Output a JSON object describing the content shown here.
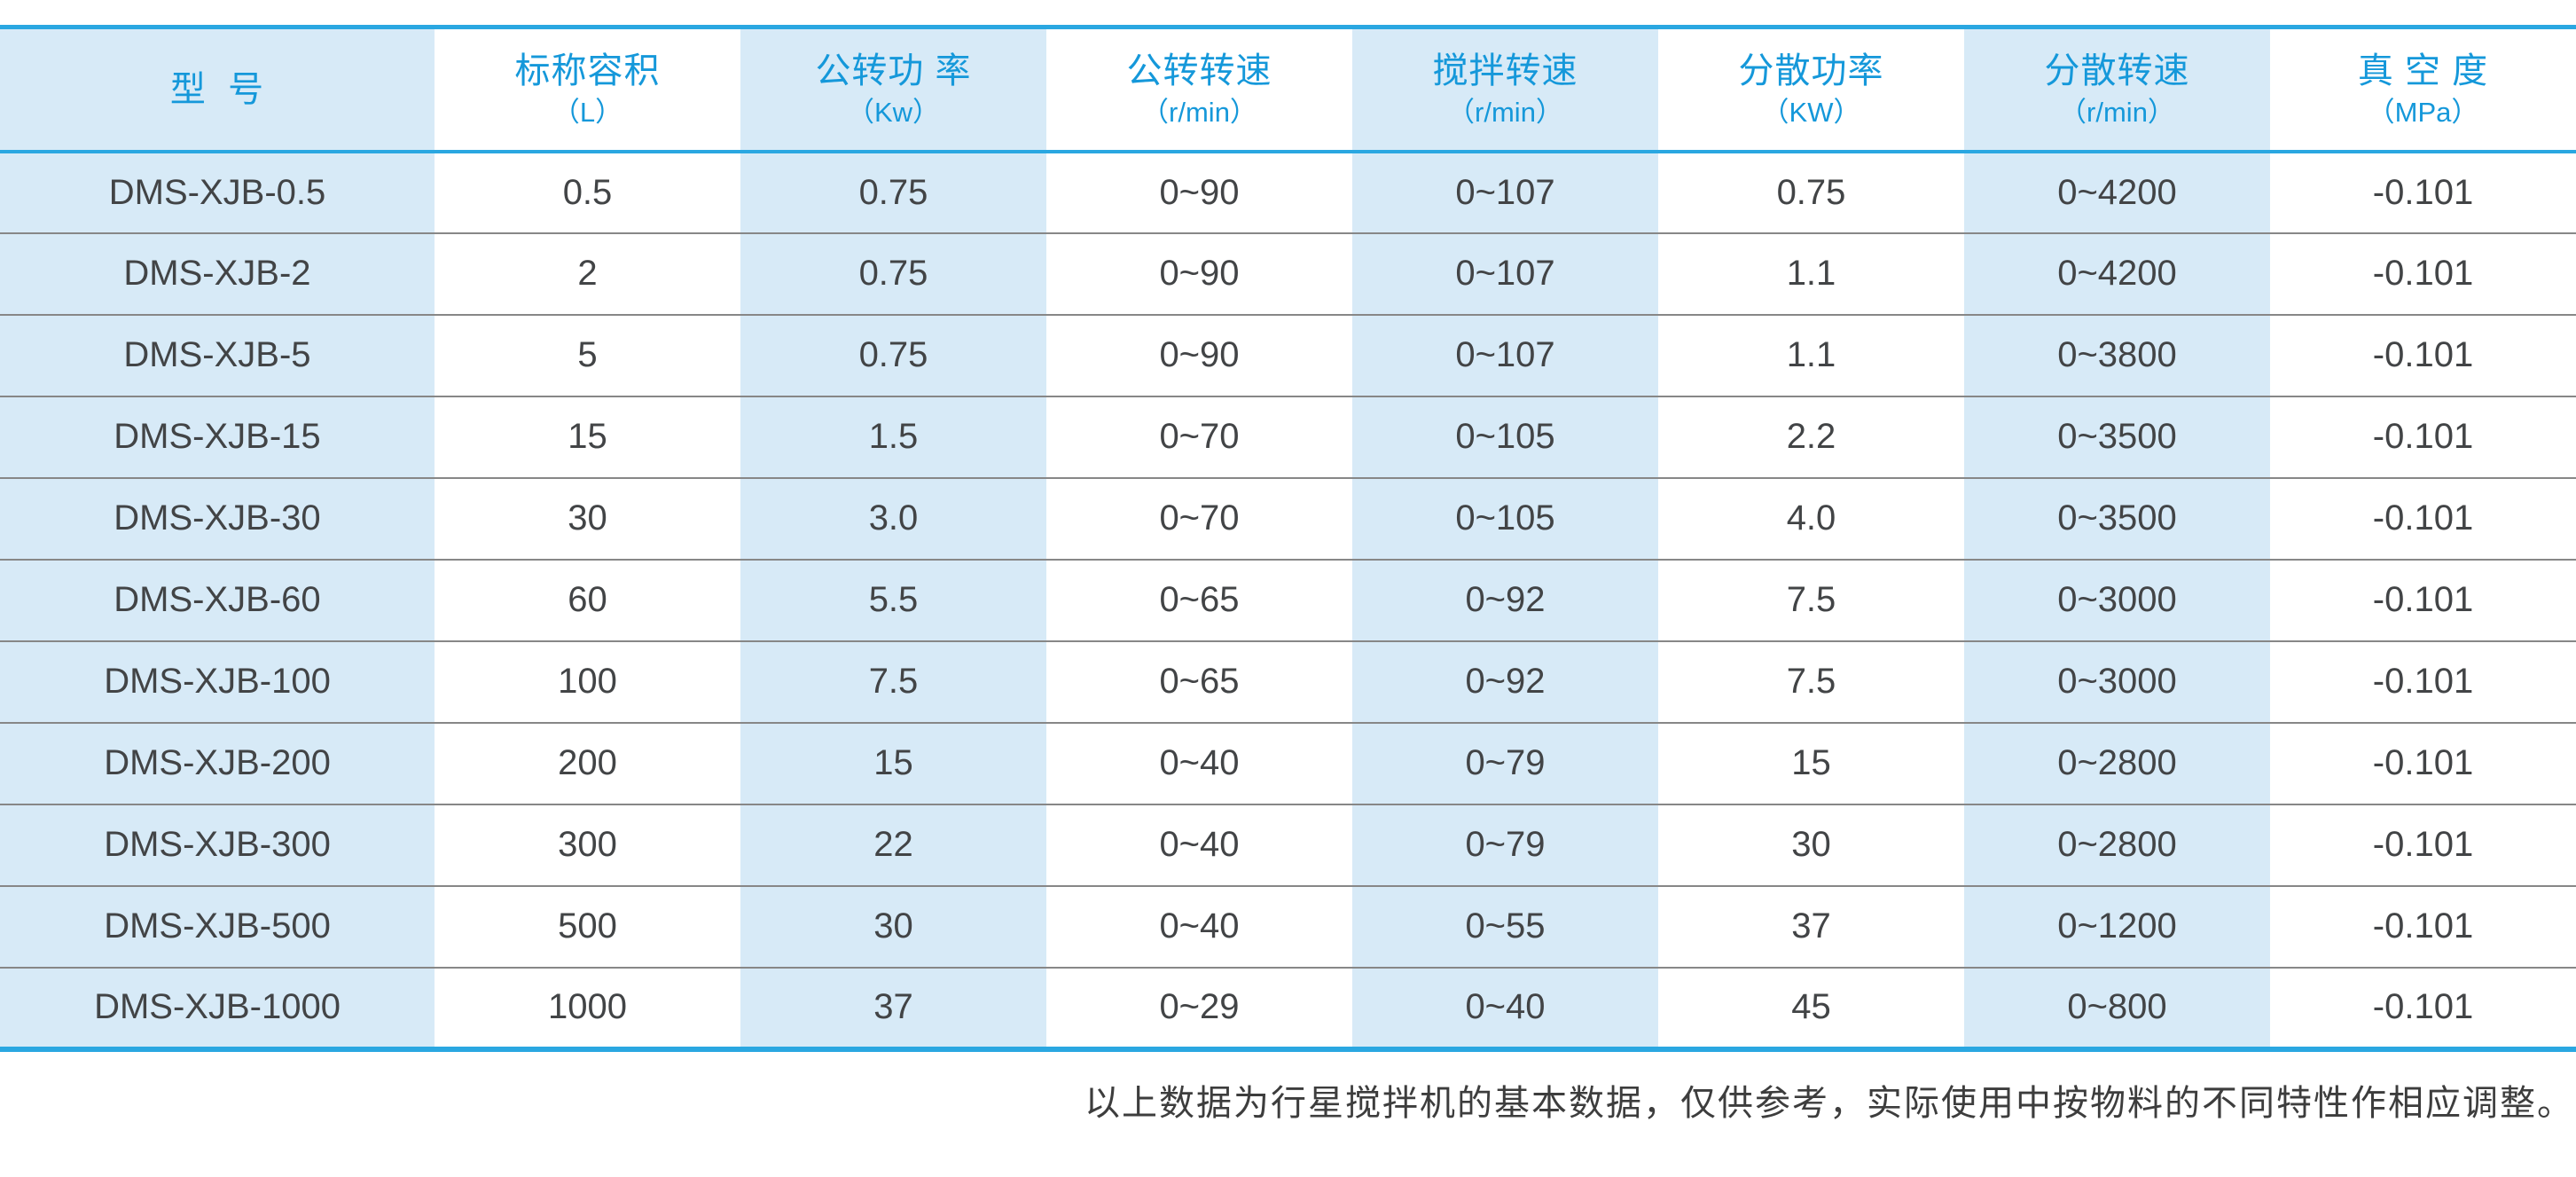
{
  "table": {
    "columns": [
      {
        "key": "model",
        "title": "型  号",
        "unit": ""
      },
      {
        "key": "nominal-volume",
        "title": "标称容积",
        "unit": "（L）"
      },
      {
        "key": "revolution-power",
        "title": "公转功 率",
        "unit": "（Kw）"
      },
      {
        "key": "revolution-speed",
        "title": "公转转速",
        "unit": "（r/min）"
      },
      {
        "key": "stirring-speed",
        "title": "搅拌转速",
        "unit": "（r/min）"
      },
      {
        "key": "dispersion-power",
        "title": "分散功率",
        "unit": "（KW）"
      },
      {
        "key": "dispersion-speed",
        "title": "分散转速",
        "unit": "（r/min）"
      },
      {
        "key": "vacuum-degree",
        "title": "真 空 度",
        "unit": "（MPa）"
      }
    ],
    "rows": [
      [
        "DMS-XJB-0.5",
        "0.5",
        "0.75",
        "0~90",
        "0~107",
        "0.75",
        "0~4200",
        "-0.101"
      ],
      [
        "DMS-XJB-2",
        "2",
        "0.75",
        "0~90",
        "0~107",
        "1.1",
        "0~4200",
        "-0.101"
      ],
      [
        "DMS-XJB-5",
        "5",
        "0.75",
        "0~90",
        "0~107",
        "1.1",
        "0~3800",
        "-0.101"
      ],
      [
        "DMS-XJB-15",
        "15",
        "1.5",
        "0~70",
        "0~105",
        "2.2",
        "0~3500",
        "-0.101"
      ],
      [
        "DMS-XJB-30",
        "30",
        "3.0",
        "0~70",
        "0~105",
        "4.0",
        "0~3500",
        "-0.101"
      ],
      [
        "DMS-XJB-60",
        "60",
        "5.5",
        "0~65",
        "0~92",
        "7.5",
        "0~3000",
        "-0.101"
      ],
      [
        "DMS-XJB-100",
        "100",
        "7.5",
        "0~65",
        "0~92",
        "7.5",
        "0~3000",
        "-0.101"
      ],
      [
        "DMS-XJB-200",
        "200",
        "15",
        "0~40",
        "0~79",
        "15",
        "0~2800",
        "-0.101"
      ],
      [
        "DMS-XJB-300",
        "300",
        "22",
        "0~40",
        "0~79",
        "30",
        "0~2800",
        "-0.101"
      ],
      [
        "DMS-XJB-500",
        "500",
        "30",
        "0~40",
        "0~55",
        "37",
        "0~1200",
        "-0.101"
      ],
      [
        "DMS-XJB-1000",
        "1000",
        "37",
        "0~29",
        "0~40",
        "45",
        "0~800",
        "-0.101"
      ]
    ]
  },
  "footer": {
    "note": "以上数据为行星搅拌机的基本数据，仅供参考，实际使用中按物料的不同特性作相应调整。"
  },
  "colors": {
    "header_text_blue": "#1598da",
    "border_blue": "#2aa7e1",
    "shade_blue": "#d7eaf7",
    "cell_text": "#424446",
    "row_separator": "#878787"
  }
}
